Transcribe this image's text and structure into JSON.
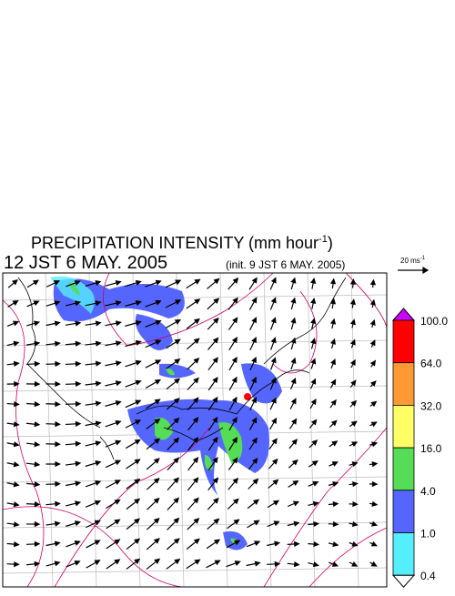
{
  "header": {
    "title": "PRECIPITATION INTENSITY (mm hour",
    "title_exponent": "-1",
    "title_close": ")",
    "time": "12 JST 6 MAY. 2005",
    "init": "(init. 9 JST 6 MAY. 2005)"
  },
  "vector_key": {
    "label": "20 ms",
    "exponent": "-1"
  },
  "colorbar": {
    "labels": [
      "100.0",
      "64.0",
      "32.0",
      "16.0",
      "4.0",
      "1.0",
      "0.4"
    ],
    "colors": [
      "#cc00ff",
      "#ff0000",
      "#ff9933",
      "#ffff66",
      "#55dd55",
      "#5566ff",
      "#55eeff",
      "#ffffff"
    ]
  }
}
